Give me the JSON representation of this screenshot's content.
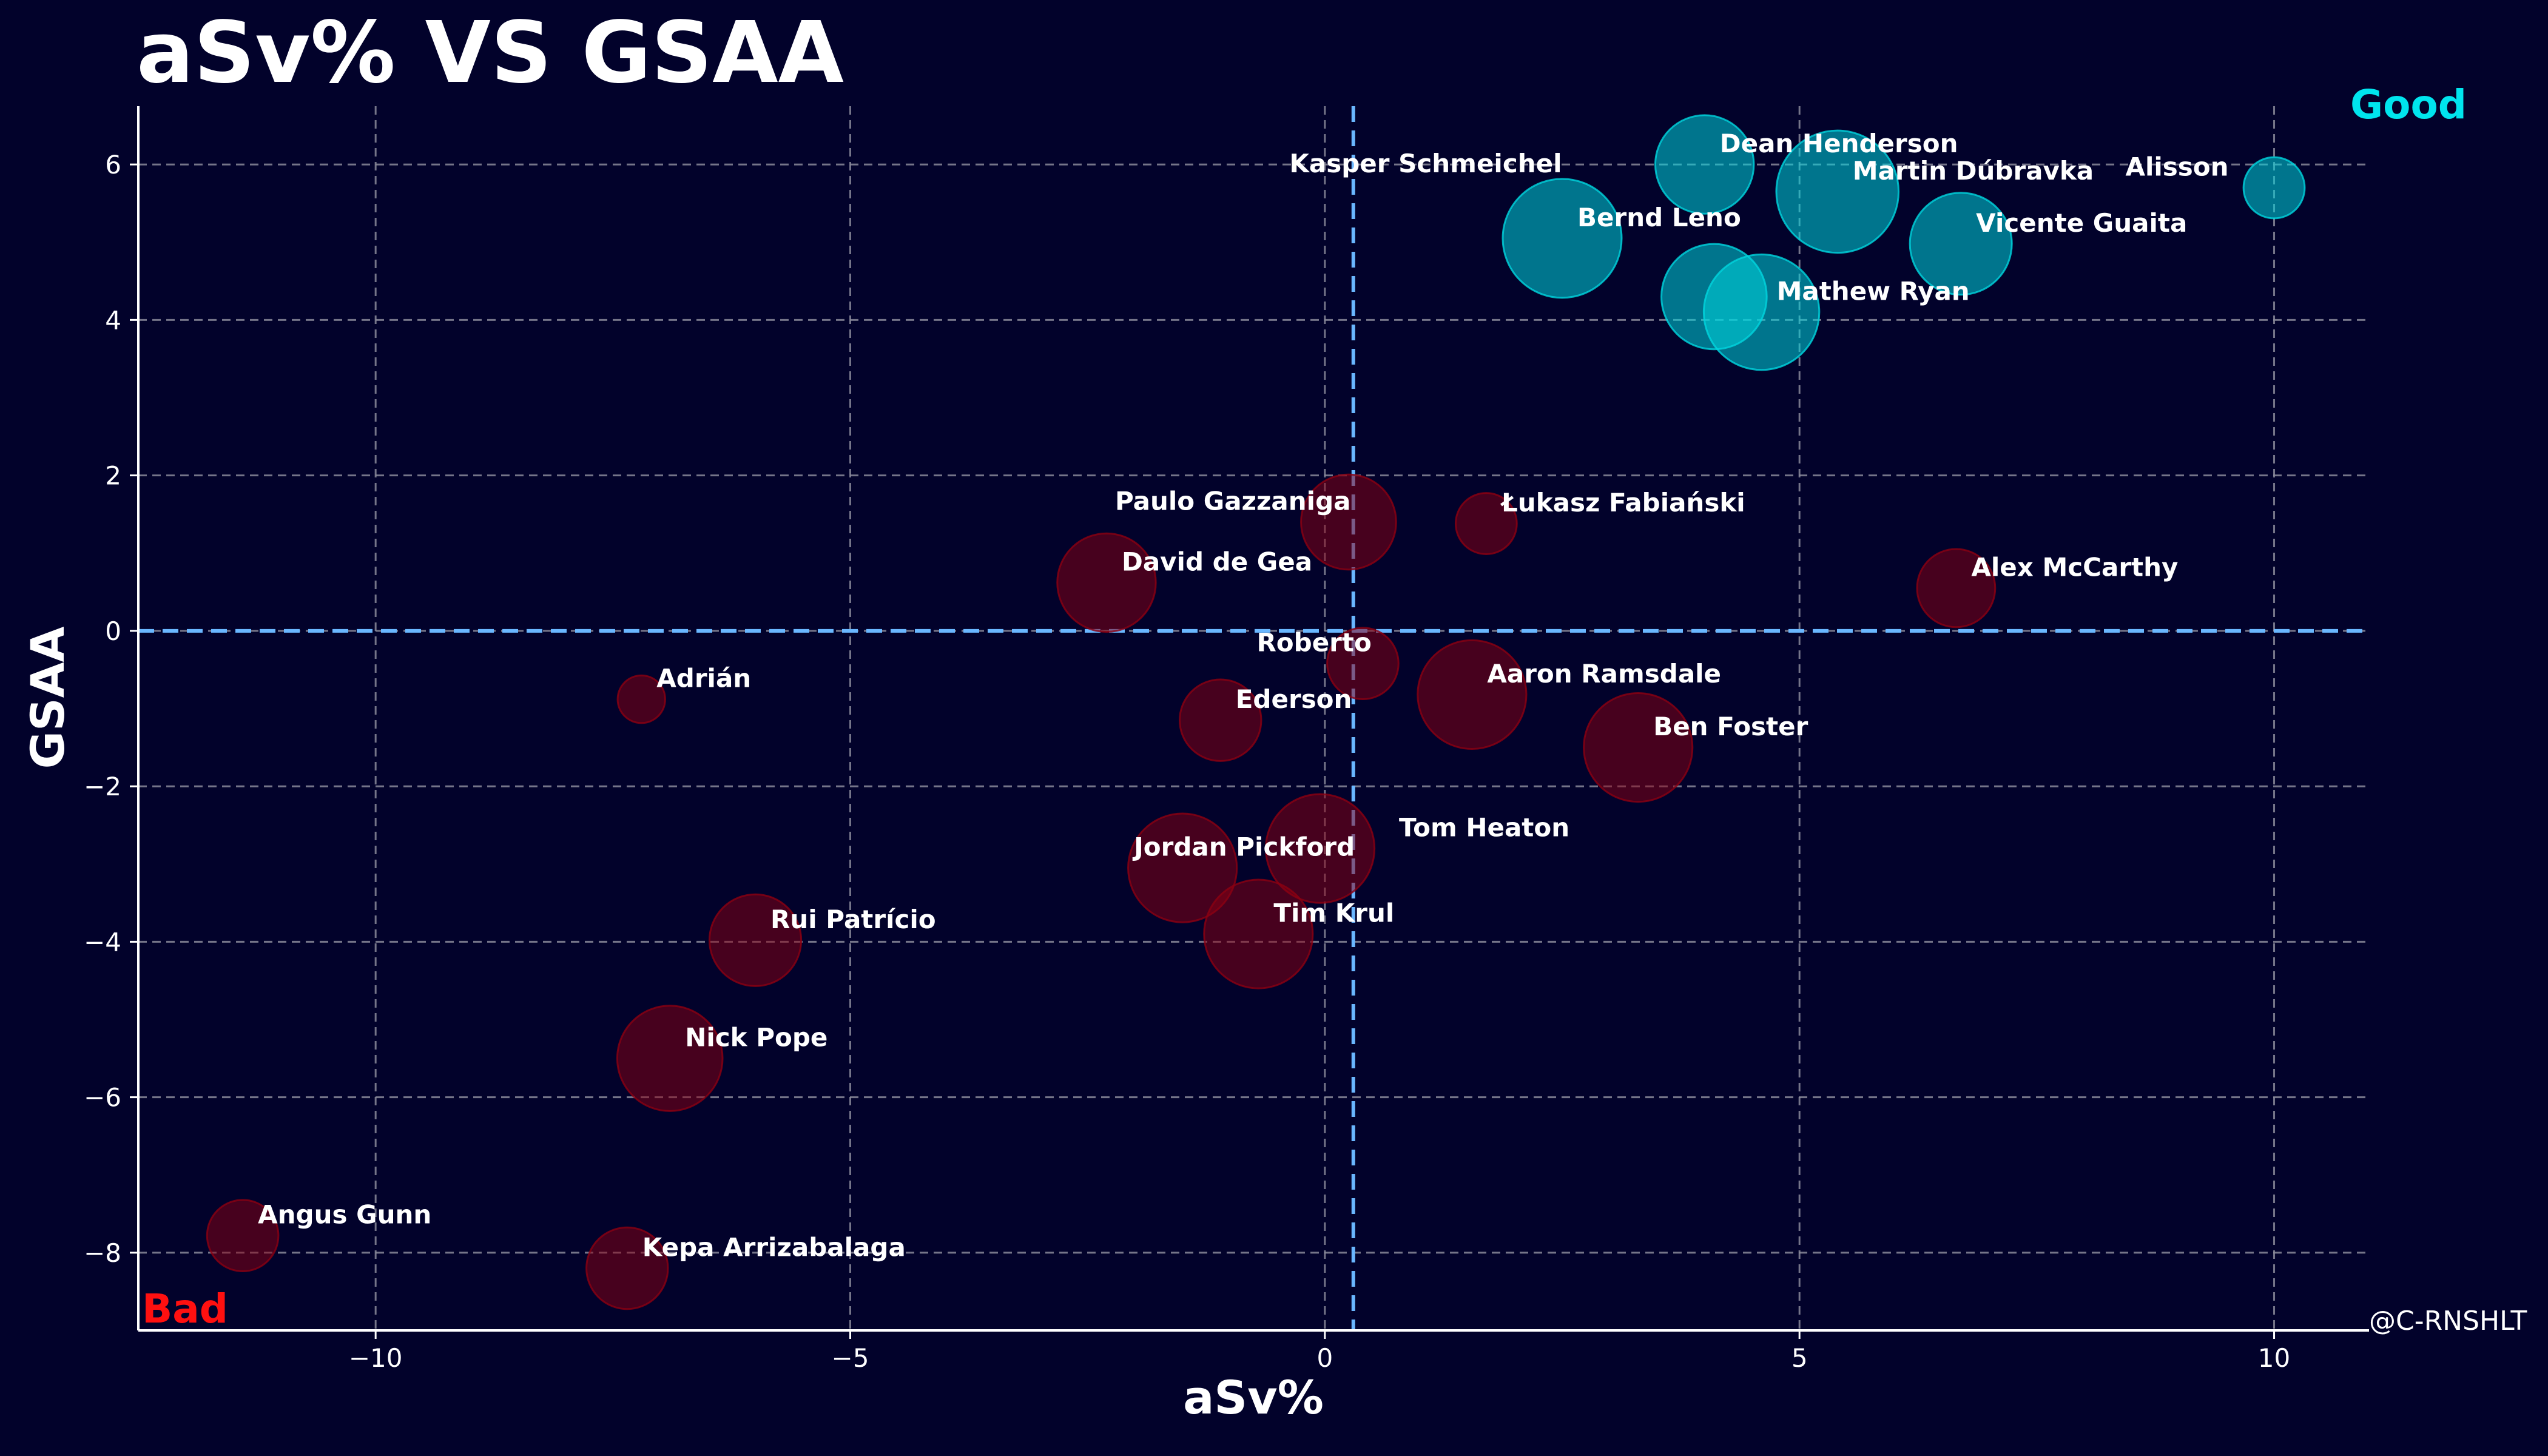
{
  "colors": {
    "background": "#02022b",
    "good": "#00d6df",
    "bad": "#8b0012",
    "bad_text": "#ff1010",
    "good_text": "#00e5ee",
    "grid": "#8a8a9a",
    "reference": "#6ab7ff",
    "text": "#ffffff"
  },
  "chart_data": {
    "type": "scatter",
    "title": "aSv% VS GSAA",
    "xlabel": "aSv%",
    "ylabel": "GSAA",
    "xlim": [
      -12.5,
      11
    ],
    "ylim": [
      -9,
      6.75
    ],
    "xticks": [
      -10,
      -5,
      0,
      5,
      10
    ],
    "xtick_labels": [
      "−10",
      "−5",
      "0",
      "5",
      "10"
    ],
    "yticks": [
      -8,
      -6,
      -4,
      -2,
      0,
      2,
      4,
      6
    ],
    "ytick_labels": [
      "−8",
      "−6",
      "−4",
      "−2",
      "0",
      "2",
      "4",
      "6"
    ],
    "grid": true,
    "reference_lines": {
      "x": 0.3,
      "y": 0
    },
    "quadrant_labels": {
      "top_right": "Good",
      "bottom_left": "Bad"
    },
    "credit": "@C-RNSHLT",
    "points": [
      {
        "name": "Dean Henderson",
        "x": 4.0,
        "y": 6.0,
        "size": 2.9,
        "good": true
      },
      {
        "name": "Martin Dúbravka",
        "x": 5.4,
        "y": 5.65,
        "size": 3.6,
        "good": true
      },
      {
        "name": "Alisson",
        "x": 10.0,
        "y": 5.7,
        "size": 1.8,
        "good": true
      },
      {
        "name": "Bernd Leno",
        "x": 2.5,
        "y": 5.05,
        "size": 3.5,
        "good": true
      },
      {
        "name": "Vicente Guaita",
        "x": 6.7,
        "y": 4.98,
        "size": 3.0,
        "good": true
      },
      {
        "name": "Kasper Schmeichel",
        "x": 4.1,
        "y": 4.3,
        "size": 3.1,
        "good": true
      },
      {
        "name": "Mathew Ryan",
        "x": 4.6,
        "y": 4.1,
        "size": 3.4,
        "good": true
      },
      {
        "name": "Paulo Gazzaniga",
        "x": 0.25,
        "y": 1.4,
        "size": 2.8,
        "good": false
      },
      {
        "name": "Łukasz Fabiański",
        "x": 1.7,
        "y": 1.38,
        "size": 1.8,
        "good": false
      },
      {
        "name": "David de Gea",
        "x": -2.3,
        "y": 0.62,
        "size": 2.9,
        "good": false
      },
      {
        "name": "Alex McCarthy",
        "x": 6.65,
        "y": 0.55,
        "size": 2.3,
        "good": false
      },
      {
        "name": "Roberto",
        "x": 0.4,
        "y": -0.42,
        "size": 2.1,
        "good": false
      },
      {
        "name": "Adrián",
        "x": -7.2,
        "y": -0.88,
        "size": 1.4,
        "good": false
      },
      {
        "name": "Aaron Ramsdale",
        "x": 1.55,
        "y": -0.82,
        "size": 3.2,
        "good": false
      },
      {
        "name": "Ederson",
        "x": -1.1,
        "y": -1.15,
        "size": 2.4,
        "good": false
      },
      {
        "name": "Ben Foster",
        "x": 3.3,
        "y": -1.5,
        "size": 3.2,
        "good": false
      },
      {
        "name": "Tom Heaton",
        "x": -0.05,
        "y": -2.8,
        "size": 3.2,
        "good": false
      },
      {
        "name": "Jordan Pickford",
        "x": -1.5,
        "y": -3.05,
        "size": 3.2,
        "good": false
      },
      {
        "name": "Tim Krul",
        "x": -0.7,
        "y": -3.9,
        "size": 3.2,
        "good": false
      },
      {
        "name": "Rui Patrício",
        "x": -6.0,
        "y": -3.98,
        "size": 2.7,
        "good": false
      },
      {
        "name": "Nick Pope",
        "x": -6.9,
        "y": -5.5,
        "size": 3.1,
        "good": false
      },
      {
        "name": "Angus Gunn",
        "x": -11.4,
        "y": -7.78,
        "size": 2.1,
        "good": false
      },
      {
        "name": "Kepa Arrizabalaga",
        "x": -7.35,
        "y": -8.2,
        "size": 2.4,
        "good": false
      }
    ]
  }
}
